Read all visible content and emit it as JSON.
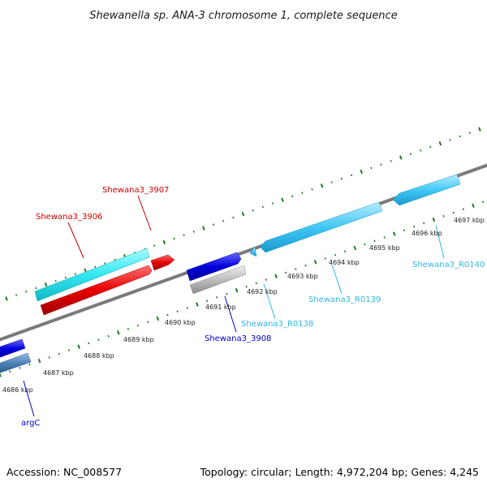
{
  "title": "Shewanella sp. ANA-3 chromosome 1, complete sequence",
  "footer": {
    "accession": "Accession: NC_008577",
    "topology": "Topology: circular; Length: 4,972,204 bp; Genes: 4,245"
  },
  "colors": {
    "backbone": "#7a7a7a",
    "tick": "#1f7a1f",
    "cyan_gene": "#33e8f0",
    "red_gene": "#e80000",
    "blue_gene": "#0000dd",
    "steel_gene": "#4a7fb5",
    "gray_gene": "#b8b8b8",
    "rna_gene": "#40c8f5",
    "red_label": "#cc0000",
    "blue_label": "#0000cc",
    "rna_label": "#30b8e0"
  },
  "kbp_labels": [
    "4686 kbp",
    "4687 kbp",
    "4688 kbp",
    "4689 kbp",
    "4690 kbp",
    "4691 kbp",
    "4692 kbp",
    "4693 kbp",
    "4694 kbp",
    "4695 kbp",
    "4696 kbp",
    "4697 kbp"
  ],
  "gene_labels": {
    "g3906": "Shewana3_3906",
    "g3907": "Shewana3_3907",
    "g3908": "Shewana3_3908",
    "r0138": "Shewana3_R0138",
    "r0139": "Shewana3_R0139",
    "r0140": "Shewana3_R0140",
    "argC": "argC"
  }
}
